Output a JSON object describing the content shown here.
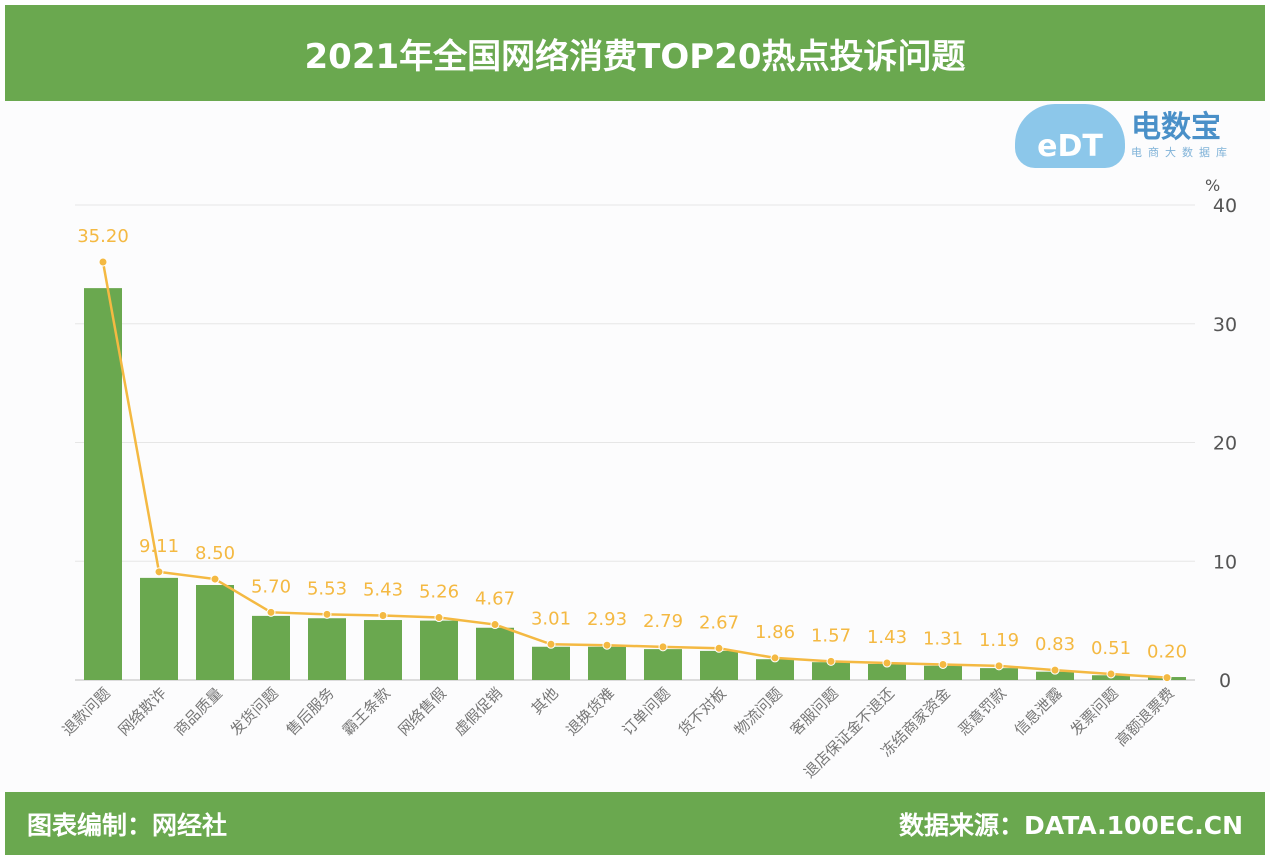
{
  "header": {
    "title": "2021年全国网络消费TOP20热点投诉问题"
  },
  "logo": {
    "icon_text": "eDT",
    "name": "电数宝",
    "subtitle": "电商大数据库"
  },
  "footer": {
    "left": "图表编制：网经社",
    "right": "数据来源：DATA.100EC.CN"
  },
  "chart_data": {
    "type": "bar+line",
    "yunit": "%",
    "ylim": [
      0,
      40
    ],
    "yticks": [
      0,
      10,
      20,
      30,
      40
    ],
    "grid": true,
    "categories": [
      "退款问题",
      "网络欺诈",
      "商品质量",
      "发货问题",
      "售后服务",
      "霸王条款",
      "网络售假",
      "虚假促销",
      "其他",
      "退换货难",
      "订单问题",
      "货不对板",
      "物流问题",
      "客服问题",
      "退店保证金不退还",
      "冻结商家资金",
      "恶意罚款",
      "信息泄露",
      "发票问题",
      "高额退票费"
    ],
    "series": [
      {
        "type": "bar",
        "color": "#6aa84f",
        "values": [
          33.0,
          8.6,
          8.0,
          5.4,
          5.2,
          5.05,
          5.0,
          4.4,
          2.8,
          2.8,
          2.6,
          2.45,
          1.75,
          1.5,
          1.35,
          1.2,
          1.0,
          0.7,
          0.4,
          0.25
        ]
      },
      {
        "type": "line",
        "color": "#f4b942",
        "values": [
          35.2,
          9.11,
          8.5,
          5.7,
          5.53,
          5.43,
          5.26,
          4.67,
          3.01,
          2.93,
          2.79,
          2.67,
          1.86,
          1.57,
          1.43,
          1.31,
          1.19,
          0.83,
          0.51,
          0.2
        ],
        "labels": [
          "35.20",
          "9.11",
          "8.50",
          "5.70",
          "5.53",
          "5.43",
          "5.26",
          "4.67",
          "3.01",
          "2.93",
          "2.79",
          "2.67",
          "1.86",
          "1.57",
          "1.43",
          "1.31",
          "1.19",
          "0.83",
          "0.51",
          "0.20"
        ]
      }
    ]
  }
}
